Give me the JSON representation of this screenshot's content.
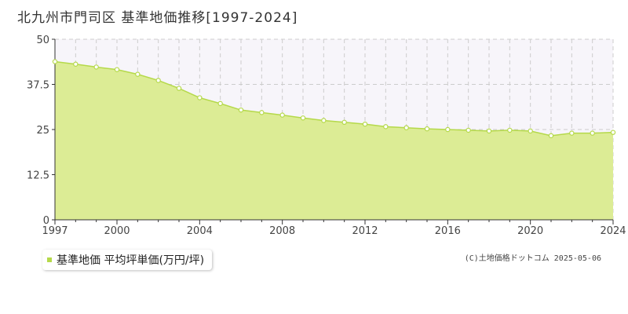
{
  "chart_data": {
    "type": "area",
    "title": "北九州市門司区 基準地価推移[1997-2024]",
    "legend": {
      "label": "基準地価 平均坪単価(万円/坪)",
      "placement": "bottom-left"
    },
    "copyright": "(C)土地価格ドットコム 2025-05-06",
    "x": [
      1997,
      1998,
      1999,
      2000,
      2001,
      2002,
      2003,
      2004,
      2005,
      2006,
      2007,
      2008,
      2009,
      2010,
      2011,
      2012,
      2013,
      2014,
      2015,
      2016,
      2017,
      2018,
      2019,
      2020,
      2021,
      2022,
      2023,
      2024
    ],
    "series": [
      {
        "name": "基準地価 平均坪単価(万円/坪)",
        "values": [
          43.8,
          43.1,
          42.3,
          41.6,
          40.3,
          38.6,
          36.4,
          33.8,
          32.2,
          30.4,
          29.7,
          29.0,
          28.2,
          27.5,
          27.0,
          26.5,
          25.8,
          25.5,
          25.2,
          25.0,
          24.8,
          24.6,
          24.8,
          24.6,
          23.3,
          24.0,
          24.0,
          24.2
        ]
      }
    ],
    "xlim": [
      1997,
      2024
    ],
    "ylim": [
      0,
      50
    ],
    "x_ticks": [
      1997,
      2000,
      2004,
      2008,
      2012,
      2016,
      2020,
      2024
    ],
    "y_ticks": [
      0,
      12.5,
      25,
      37.5,
      50
    ],
    "y_tick_labels": [
      "0",
      "12.5",
      "25",
      "37.5",
      "50"
    ],
    "grid": true,
    "colors": {
      "fill": "#dcec95",
      "line": "#b5d94a",
      "marker_fill": "#ffffff",
      "grid": "#cccccc",
      "plot_bg": "#f7f5fa"
    }
  }
}
